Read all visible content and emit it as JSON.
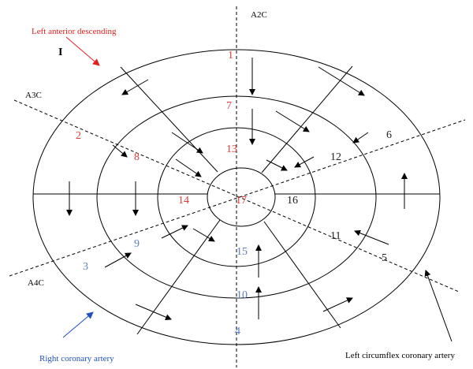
{
  "colors": {
    "lad": "#e02020",
    "rca": "#2050c0",
    "lcx": "#000000",
    "seg_red": "#e03c3c",
    "seg_blue": "#5a7ec8",
    "seg_black": "#222222",
    "line": "#000000"
  },
  "views": {
    "a2c": "A2C",
    "a3c": "A3C",
    "a4c": "A4C"
  },
  "arteries": {
    "lad": "Left anterior descending",
    "rca": "Right coronary artery",
    "lcx": "Left circumflex coronary artery"
  },
  "marker": "I",
  "segments": [
    {
      "id": "1",
      "color": "red"
    },
    {
      "id": "2",
      "color": "red"
    },
    {
      "id": "3",
      "color": "blue"
    },
    {
      "id": "4",
      "color": "blue"
    },
    {
      "id": "5",
      "color": "black"
    },
    {
      "id": "6",
      "color": "black"
    },
    {
      "id": "7",
      "color": "red"
    },
    {
      "id": "8",
      "color": "red"
    },
    {
      "id": "9",
      "color": "blue"
    },
    {
      "id": "10",
      "color": "blue"
    },
    {
      "id": "11",
      "color": "black"
    },
    {
      "id": "12",
      "color": "black"
    },
    {
      "id": "13",
      "color": "red"
    },
    {
      "id": "14",
      "color": "red"
    },
    {
      "id": "15",
      "color": "blue"
    },
    {
      "id": "16",
      "color": "black"
    },
    {
      "id": "17",
      "color": "red"
    }
  ]
}
